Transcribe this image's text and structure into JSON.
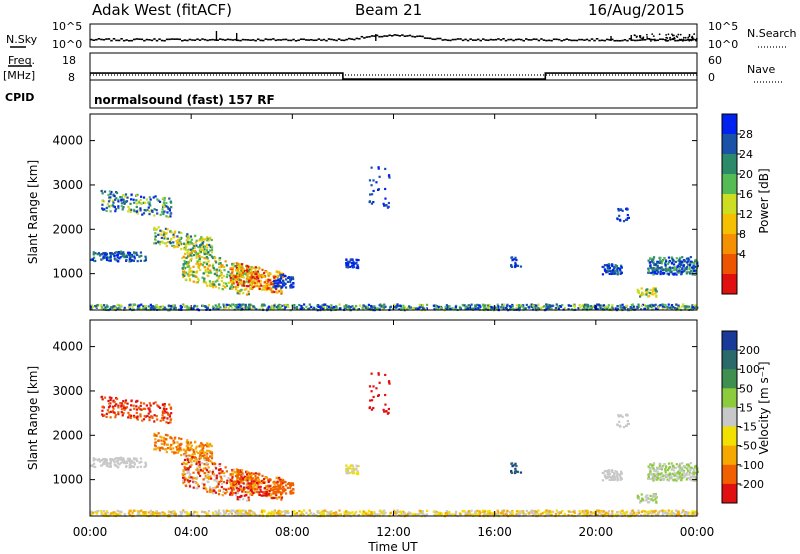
{
  "header": {
    "station": "Adak West (fitACF)",
    "beam": "Beam 21",
    "date": "16/Aug/2015"
  },
  "left_labels": {
    "nsky": "N.Sky",
    "freq": "Freq.",
    "freq_unit": "[MHz]",
    "cpid": "CPID"
  },
  "right_labels": {
    "nsearch": "N.Search",
    "nave": "Nave"
  },
  "cpid_text": "normalsound (fast) 157 RF",
  "chart_data": [
    {
      "type": "line",
      "name": "noise",
      "y_ticks_left": [
        "10^5",
        "10^0"
      ],
      "y_ticks_right": [
        "10^5",
        "10^0"
      ]
    },
    {
      "type": "line",
      "name": "frequency",
      "y_ticks_left": [
        "18",
        "8"
      ],
      "y_ticks_right": [
        "60",
        "0"
      ],
      "series": [
        {
          "x": [
            0,
            10,
            10,
            18,
            18,
            24
          ],
          "y": [
            12.4,
            12.4,
            10.2,
            10.2,
            12.4,
            12.4
          ]
        }
      ]
    },
    {
      "type": "heatmap",
      "name": "power",
      "ylabel": "Slant Range [km]",
      "yticks": [
        1000,
        2000,
        3000,
        4000
      ],
      "ylim": [
        180,
        4600
      ],
      "xlim": [
        0,
        24
      ],
      "colorbar": {
        "label": "Power [dB]",
        "ticks": [
          "4",
          "8",
          "12",
          "16",
          "20",
          "24",
          "28"
        ],
        "colors": [
          "#0022ee",
          "#1a52a8",
          "#2a8a6a",
          "#55bb55",
          "#ccdd22",
          "#f5c000",
          "#f59000",
          "#ee5500",
          "#e01010"
        ]
      }
    },
    {
      "type": "heatmap",
      "name": "velocity",
      "ylabel": "Slant Range [km]",
      "yticks": [
        1000,
        2000,
        3000,
        4000
      ],
      "ylim": [
        180,
        4600
      ],
      "xlim": [
        0,
        24
      ],
      "colorbar": {
        "label": "Velocity [m s⁻¹]",
        "ticks": [
          "200",
          "100",
          "50",
          "15",
          "-15",
          "-50",
          "-100",
          "-200"
        ],
        "colors": [
          "#1a3a9a",
          "#2a6a6a",
          "#3f8f4f",
          "#8ccc3c",
          "#c8c8c8",
          "#f2e000",
          "#f5a800",
          "#f06000",
          "#e01010"
        ]
      }
    }
  ],
  "x_axis": {
    "ticks": [
      "00:00",
      "04:00",
      "08:00",
      "12:00",
      "16:00",
      "20:00",
      "00:00"
    ],
    "label": "Time UT"
  }
}
